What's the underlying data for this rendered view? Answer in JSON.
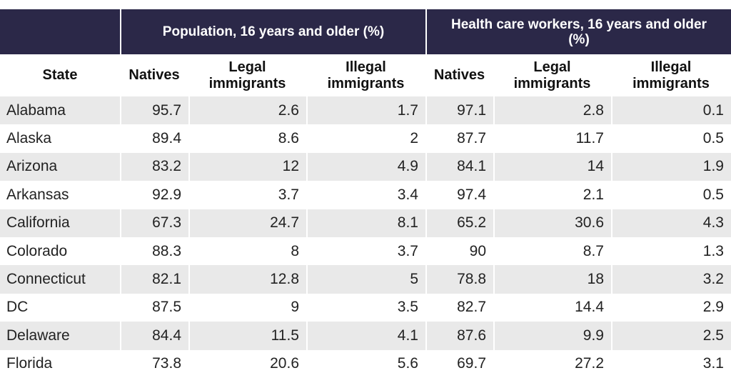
{
  "header": {
    "group_population": "Population, 16 years and older (%)",
    "group_health": "Health care workers, 16 years and older (%)",
    "columns": {
      "state": "State",
      "pop_natives": "Natives",
      "pop_legal": "Legal immigrants",
      "pop_illegal": "Illegal immigrants",
      "hcw_natives": "Natives",
      "hcw_legal": "Legal immigrants",
      "hcw_illegal": "Illegal immigrants"
    }
  },
  "rows": [
    {
      "state": "Alabama",
      "pop_natives": "95.7",
      "pop_legal": "2.6",
      "pop_illegal": "1.7",
      "hcw_natives": "97.1",
      "hcw_legal": "2.8",
      "hcw_illegal": "0.1"
    },
    {
      "state": "Alaska",
      "pop_natives": "89.4",
      "pop_legal": "8.6",
      "pop_illegal": "2",
      "hcw_natives": "87.7",
      "hcw_legal": "11.7",
      "hcw_illegal": "0.5"
    },
    {
      "state": "Arizona",
      "pop_natives": "83.2",
      "pop_legal": "12",
      "pop_illegal": "4.9",
      "hcw_natives": "84.1",
      "hcw_legal": "14",
      "hcw_illegal": "1.9"
    },
    {
      "state": "Arkansas",
      "pop_natives": "92.9",
      "pop_legal": "3.7",
      "pop_illegal": "3.4",
      "hcw_natives": "97.4",
      "hcw_legal": "2.1",
      "hcw_illegal": "0.5"
    },
    {
      "state": "California",
      "pop_natives": "67.3",
      "pop_legal": "24.7",
      "pop_illegal": "8.1",
      "hcw_natives": "65.2",
      "hcw_legal": "30.6",
      "hcw_illegal": "4.3"
    },
    {
      "state": "Colorado",
      "pop_natives": "88.3",
      "pop_legal": "8",
      "pop_illegal": "3.7",
      "hcw_natives": "90",
      "hcw_legal": "8.7",
      "hcw_illegal": "1.3"
    },
    {
      "state": "Connecticut",
      "pop_natives": "82.1",
      "pop_legal": "12.8",
      "pop_illegal": "5",
      "hcw_natives": "78.8",
      "hcw_legal": "18",
      "hcw_illegal": "3.2"
    },
    {
      "state": "DC",
      "pop_natives": "87.5",
      "pop_legal": "9",
      "pop_illegal": "3.5",
      "hcw_natives": "82.7",
      "hcw_legal": "14.4",
      "hcw_illegal": "2.9"
    },
    {
      "state": "Delaware",
      "pop_natives": "84.4",
      "pop_legal": "11.5",
      "pop_illegal": "4.1",
      "hcw_natives": "87.6",
      "hcw_legal": "9.9",
      "hcw_illegal": "2.5"
    },
    {
      "state": "Florida",
      "pop_natives": "73.8",
      "pop_legal": "20.6",
      "pop_illegal": "5.6",
      "hcw_natives": "69.7",
      "hcw_legal": "27.2",
      "hcw_illegal": "3.1"
    }
  ]
}
